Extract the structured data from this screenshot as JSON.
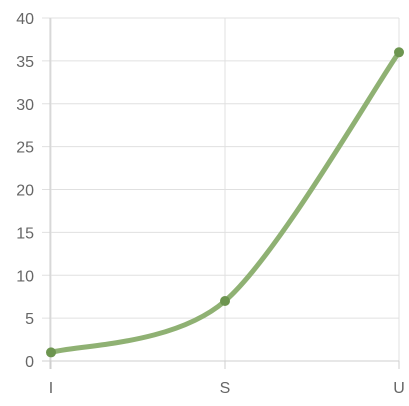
{
  "chart_data": {
    "type": "line",
    "title": "",
    "xlabel": "",
    "ylabel": "",
    "categories": [
      "I",
      "S",
      "U"
    ],
    "series": [
      {
        "values": [
          1,
          7,
          36
        ]
      }
    ],
    "ylim": [
      0,
      40
    ],
    "yticks": [
      0,
      5,
      10,
      15,
      20,
      25,
      30,
      35,
      40
    ],
    "grid": true,
    "legend": "none",
    "colors": {
      "line": "#8fb173",
      "point": "#6d9550",
      "grid": "#e0e0e0",
      "text": "#666666"
    }
  }
}
